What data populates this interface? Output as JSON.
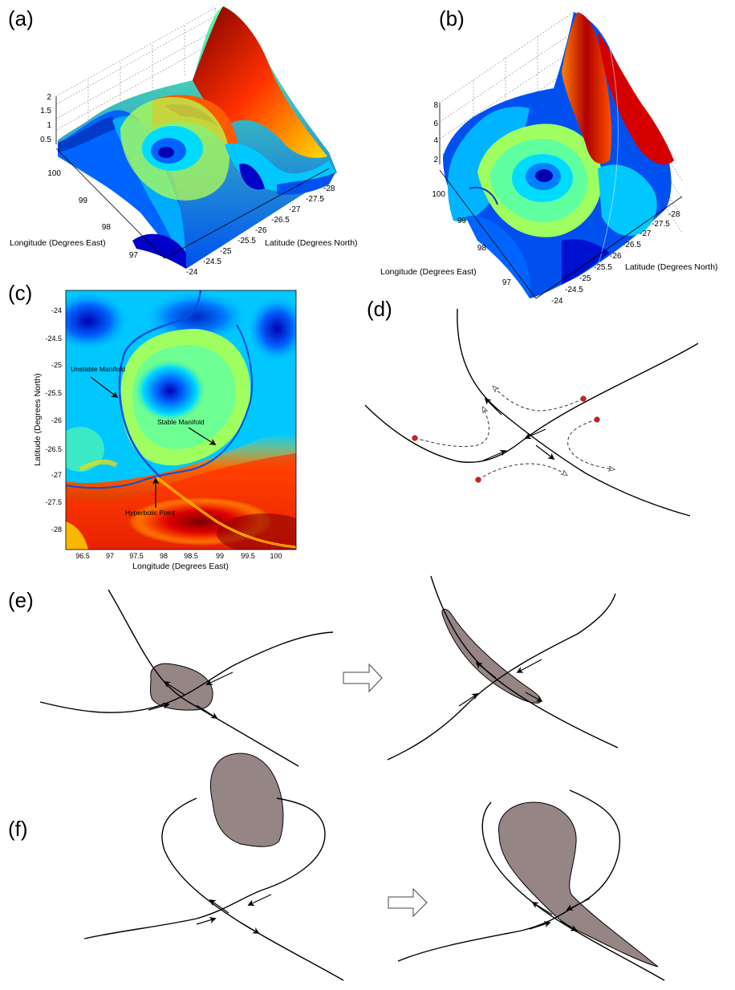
{
  "panels": {
    "a": {
      "label": "(a)",
      "z_ticks": [
        "2",
        "1.5",
        "1",
        "0.5"
      ],
      "lon_ticks": [
        "100",
        "99",
        "98",
        "97"
      ],
      "lat_ticks": [
        "-24",
        "-24.5",
        "-25",
        "-25.5",
        "-26",
        "-26.5",
        "-27",
        "-27.5",
        "-28"
      ],
      "lon_label": "Longitude (Degrees East)",
      "lat_label": "Latitude (Degrees North)"
    },
    "b": {
      "label": "(b)",
      "z_ticks": [
        "8",
        "6",
        "4",
        "2"
      ],
      "lon_ticks": [
        "100",
        "99",
        "98",
        "97"
      ],
      "lat_ticks": [
        "-24",
        "-24.5",
        "-25",
        "-25.5",
        "-26",
        "-26.5",
        "-27",
        "-27.5",
        "-28"
      ],
      "lon_label": "Longitude (Degrees East)",
      "lat_label": "Latitude (Degrees North)"
    },
    "c": {
      "label": "(c)",
      "y_ticks": [
        "-24",
        "-24.5",
        "-25",
        "-25.5",
        "-26",
        "-26.5",
        "-27",
        "-27.5",
        "-28"
      ],
      "x_ticks": [
        "96.5",
        "97",
        "97.5",
        "98",
        "98.5",
        "99",
        "99.5",
        "100"
      ],
      "xlabel": "Longitude (Degrees East)",
      "ylabel": "Latitude (Degrees North)",
      "annotations": {
        "unstable": "Unstable Manifold",
        "stable": "Stable Manifold",
        "hyperbolic": "Hyperbolic Point"
      }
    },
    "d": {
      "label": "(d)"
    },
    "e": {
      "label": "(e)"
    },
    "f": {
      "label": "(f)"
    }
  },
  "colors": {
    "jet_dark_blue": "#0000b4",
    "jet_blue": "#0064ff",
    "jet_cyan": "#00dcff",
    "jet_green": "#a0ff60",
    "jet_yellow": "#ffdc00",
    "jet_orange": "#ff6400",
    "jet_red": "#dc0000",
    "jet_dark_red": "#7a0000",
    "blob_fill": "#968585",
    "particle_red": "#d42020"
  }
}
